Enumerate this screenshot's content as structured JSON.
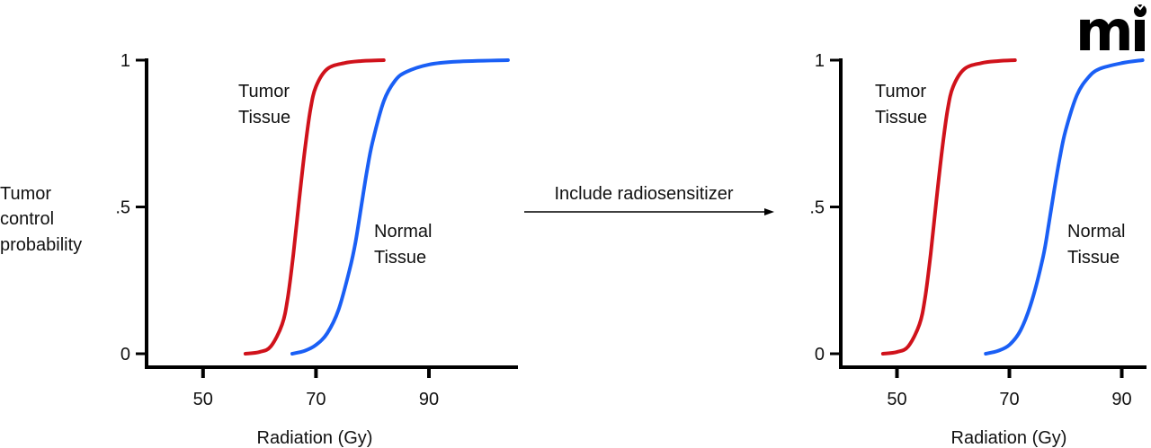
{
  "logo": {
    "text": "mi"
  },
  "ylabel_lines": [
    "Tumor",
    "control",
    "probability"
  ],
  "arrow_label": "Include radiosensitizer",
  "colors": {
    "tumor": "#d0121b",
    "normal": "#1a5ff5",
    "axis": "#000000"
  },
  "chart_data": [
    {
      "type": "line",
      "title": "",
      "xlabel": "Radiation (Gy)",
      "ylabel": "Tumor control probability",
      "xlim": [
        40,
        105
      ],
      "ylim": [
        0,
        1
      ],
      "xticks": [
        {
          "v": 50,
          "label": "50"
        },
        {
          "v": 70,
          "label": "70"
        },
        {
          "v": 90,
          "label": "90"
        }
      ],
      "yticks": [
        {
          "v": 0,
          "label": "0"
        },
        {
          "v": 0.5,
          "label": ".5"
        },
        {
          "v": 1,
          "label": "1"
        }
      ],
      "grid": false,
      "series": [
        {
          "name": "Tumor Tissue",
          "label_lines": [
            "Tumor",
            "Tissue"
          ],
          "color": "#d0121b",
          "x": [
            57.5,
            60,
            62,
            64,
            65,
            66,
            67,
            68,
            69,
            70,
            72,
            75,
            78,
            82
          ],
          "y": [
            0,
            0.006,
            0.025,
            0.1,
            0.19,
            0.34,
            0.52,
            0.69,
            0.83,
            0.91,
            0.97,
            0.99,
            0.997,
            1
          ]
        },
        {
          "name": "Normal Tissue",
          "label_lines": [
            "Normal",
            "Tissue"
          ],
          "color": "#1a5ff5",
          "x": [
            65.8,
            68,
            70,
            72,
            74,
            76,
            77,
            78,
            79,
            80,
            82,
            84,
            86,
            90,
            95,
            104
          ],
          "y": [
            0,
            0.01,
            0.03,
            0.07,
            0.15,
            0.29,
            0.38,
            0.5,
            0.62,
            0.72,
            0.86,
            0.93,
            0.96,
            0.985,
            0.995,
            1
          ]
        }
      ]
    },
    {
      "type": "line",
      "title": "",
      "xlabel": "Radiation (Gy)",
      "ylabel": "",
      "xlim": [
        40,
        95
      ],
      "ylim": [
        0,
        1
      ],
      "xticks": [
        {
          "v": 50,
          "label": "50"
        },
        {
          "v": 70,
          "label": "70"
        },
        {
          "v": 90,
          "label": "90"
        }
      ],
      "yticks": [
        {
          "v": 0,
          "label": "0"
        },
        {
          "v": 0.5,
          "label": ".5"
        },
        {
          "v": 1,
          "label": "1"
        }
      ],
      "grid": false,
      "series": [
        {
          "name": "Tumor Tissue",
          "label_lines": [
            "Tumor",
            "Tissue"
          ],
          "color": "#d0121b",
          "x": [
            47.5,
            50,
            52,
            54,
            55,
            56,
            57,
            58,
            59,
            60,
            62,
            65,
            68,
            71
          ],
          "y": [
            0,
            0.006,
            0.025,
            0.1,
            0.19,
            0.34,
            0.52,
            0.69,
            0.83,
            0.91,
            0.97,
            0.99,
            0.997,
            1
          ]
        },
        {
          "name": "Normal Tissue",
          "label_lines": [
            "Normal",
            "Tissue"
          ],
          "color": "#1a5ff5",
          "x": [
            65.8,
            68,
            70,
            72,
            74,
            76,
            77,
            78,
            79,
            80,
            82,
            84,
            86,
            90,
            93.7
          ],
          "y": [
            0,
            0.01,
            0.03,
            0.08,
            0.18,
            0.33,
            0.44,
            0.56,
            0.67,
            0.76,
            0.88,
            0.94,
            0.97,
            0.99,
            1
          ]
        }
      ]
    }
  ]
}
